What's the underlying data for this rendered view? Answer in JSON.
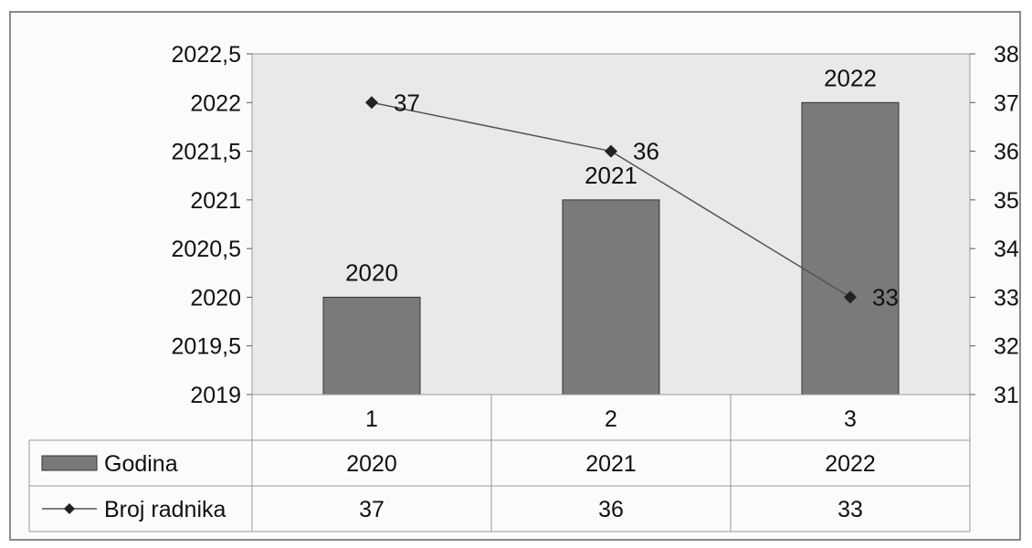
{
  "chart_data": {
    "type": "bar",
    "categories": [
      "1",
      "2",
      "3"
    ],
    "series": [
      {
        "name": "Godina",
        "type": "bar",
        "axis": "left",
        "values": [
          2020,
          2021,
          2022
        ],
        "color": "#7a7a7a"
      },
      {
        "name": "Broj radnika",
        "type": "line",
        "axis": "right",
        "values": [
          37,
          36,
          33
        ],
        "color": "#555555"
      }
    ],
    "ylim": [
      2019,
      2022.5
    ],
    "ylim_right": [
      31,
      38
    ],
    "yticks_left": [
      "2019",
      "2019,5",
      "2020",
      "2020,5",
      "2021",
      "2021,5",
      "2022",
      "2022,5"
    ],
    "yticks_right": [
      "31",
      "32",
      "33",
      "34",
      "35",
      "36",
      "37",
      "38"
    ],
    "data_labels_bar": [
      "2020",
      "2021",
      "2022"
    ],
    "data_labels_line": [
      "37",
      "36",
      "33"
    ],
    "data_table": {
      "rows": [
        {
          "label": "Godina",
          "values": [
            "2020",
            "2021",
            "2022"
          ]
        },
        {
          "label": "Broj radnika",
          "values": [
            "37",
            "36",
            "33"
          ]
        }
      ]
    },
    "legend": "data-table",
    "grid": false
  }
}
